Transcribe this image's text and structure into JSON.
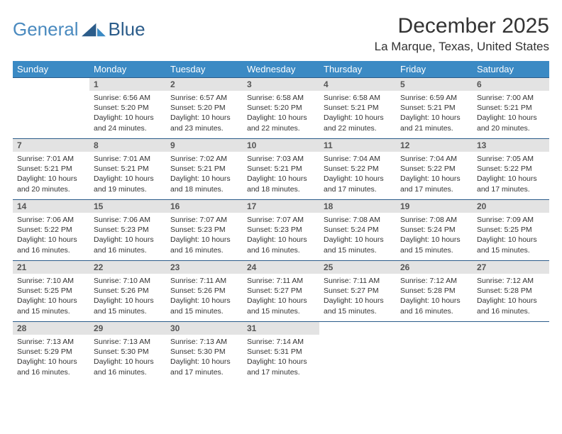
{
  "brand": {
    "part1": "General",
    "part2": "Blue"
  },
  "title": "December 2025",
  "location": "La Marque, Texas, United States",
  "colors": {
    "header_bg": "#3b8ac4",
    "header_text": "#ffffff",
    "daynum_bg": "#e3e3e3",
    "daynum_text": "#555555",
    "cell_border": "#2b5c8a",
    "body_text": "#333333",
    "logo_light": "#4a8abf",
    "logo_dark": "#2b5c8a"
  },
  "weekdays": [
    "Sunday",
    "Monday",
    "Tuesday",
    "Wednesday",
    "Thursday",
    "Friday",
    "Saturday"
  ],
  "weeks": [
    [
      {
        "n": "",
        "lines": []
      },
      {
        "n": "1",
        "lines": [
          "Sunrise: 6:56 AM",
          "Sunset: 5:20 PM",
          "Daylight: 10 hours and 24 minutes."
        ]
      },
      {
        "n": "2",
        "lines": [
          "Sunrise: 6:57 AM",
          "Sunset: 5:20 PM",
          "Daylight: 10 hours and 23 minutes."
        ]
      },
      {
        "n": "3",
        "lines": [
          "Sunrise: 6:58 AM",
          "Sunset: 5:20 PM",
          "Daylight: 10 hours and 22 minutes."
        ]
      },
      {
        "n": "4",
        "lines": [
          "Sunrise: 6:58 AM",
          "Sunset: 5:21 PM",
          "Daylight: 10 hours and 22 minutes."
        ]
      },
      {
        "n": "5",
        "lines": [
          "Sunrise: 6:59 AM",
          "Sunset: 5:21 PM",
          "Daylight: 10 hours and 21 minutes."
        ]
      },
      {
        "n": "6",
        "lines": [
          "Sunrise: 7:00 AM",
          "Sunset: 5:21 PM",
          "Daylight: 10 hours and 20 minutes."
        ]
      }
    ],
    [
      {
        "n": "7",
        "lines": [
          "Sunrise: 7:01 AM",
          "Sunset: 5:21 PM",
          "Daylight: 10 hours and 20 minutes."
        ]
      },
      {
        "n": "8",
        "lines": [
          "Sunrise: 7:01 AM",
          "Sunset: 5:21 PM",
          "Daylight: 10 hours and 19 minutes."
        ]
      },
      {
        "n": "9",
        "lines": [
          "Sunrise: 7:02 AM",
          "Sunset: 5:21 PM",
          "Daylight: 10 hours and 18 minutes."
        ]
      },
      {
        "n": "10",
        "lines": [
          "Sunrise: 7:03 AM",
          "Sunset: 5:21 PM",
          "Daylight: 10 hours and 18 minutes."
        ]
      },
      {
        "n": "11",
        "lines": [
          "Sunrise: 7:04 AM",
          "Sunset: 5:22 PM",
          "Daylight: 10 hours and 17 minutes."
        ]
      },
      {
        "n": "12",
        "lines": [
          "Sunrise: 7:04 AM",
          "Sunset: 5:22 PM",
          "Daylight: 10 hours and 17 minutes."
        ]
      },
      {
        "n": "13",
        "lines": [
          "Sunrise: 7:05 AM",
          "Sunset: 5:22 PM",
          "Daylight: 10 hours and 17 minutes."
        ]
      }
    ],
    [
      {
        "n": "14",
        "lines": [
          "Sunrise: 7:06 AM",
          "Sunset: 5:22 PM",
          "Daylight: 10 hours and 16 minutes."
        ]
      },
      {
        "n": "15",
        "lines": [
          "Sunrise: 7:06 AM",
          "Sunset: 5:23 PM",
          "Daylight: 10 hours and 16 minutes."
        ]
      },
      {
        "n": "16",
        "lines": [
          "Sunrise: 7:07 AM",
          "Sunset: 5:23 PM",
          "Daylight: 10 hours and 16 minutes."
        ]
      },
      {
        "n": "17",
        "lines": [
          "Sunrise: 7:07 AM",
          "Sunset: 5:23 PM",
          "Daylight: 10 hours and 16 minutes."
        ]
      },
      {
        "n": "18",
        "lines": [
          "Sunrise: 7:08 AM",
          "Sunset: 5:24 PM",
          "Daylight: 10 hours and 15 minutes."
        ]
      },
      {
        "n": "19",
        "lines": [
          "Sunrise: 7:08 AM",
          "Sunset: 5:24 PM",
          "Daylight: 10 hours and 15 minutes."
        ]
      },
      {
        "n": "20",
        "lines": [
          "Sunrise: 7:09 AM",
          "Sunset: 5:25 PM",
          "Daylight: 10 hours and 15 minutes."
        ]
      }
    ],
    [
      {
        "n": "21",
        "lines": [
          "Sunrise: 7:10 AM",
          "Sunset: 5:25 PM",
          "Daylight: 10 hours and 15 minutes."
        ]
      },
      {
        "n": "22",
        "lines": [
          "Sunrise: 7:10 AM",
          "Sunset: 5:26 PM",
          "Daylight: 10 hours and 15 minutes."
        ]
      },
      {
        "n": "23",
        "lines": [
          "Sunrise: 7:11 AM",
          "Sunset: 5:26 PM",
          "Daylight: 10 hours and 15 minutes."
        ]
      },
      {
        "n": "24",
        "lines": [
          "Sunrise: 7:11 AM",
          "Sunset: 5:27 PM",
          "Daylight: 10 hours and 15 minutes."
        ]
      },
      {
        "n": "25",
        "lines": [
          "Sunrise: 7:11 AM",
          "Sunset: 5:27 PM",
          "Daylight: 10 hours and 15 minutes."
        ]
      },
      {
        "n": "26",
        "lines": [
          "Sunrise: 7:12 AM",
          "Sunset: 5:28 PM",
          "Daylight: 10 hours and 16 minutes."
        ]
      },
      {
        "n": "27",
        "lines": [
          "Sunrise: 7:12 AM",
          "Sunset: 5:28 PM",
          "Daylight: 10 hours and 16 minutes."
        ]
      }
    ],
    [
      {
        "n": "28",
        "lines": [
          "Sunrise: 7:13 AM",
          "Sunset: 5:29 PM",
          "Daylight: 10 hours and 16 minutes."
        ]
      },
      {
        "n": "29",
        "lines": [
          "Sunrise: 7:13 AM",
          "Sunset: 5:30 PM",
          "Daylight: 10 hours and 16 minutes."
        ]
      },
      {
        "n": "30",
        "lines": [
          "Sunrise: 7:13 AM",
          "Sunset: 5:30 PM",
          "Daylight: 10 hours and 17 minutes."
        ]
      },
      {
        "n": "31",
        "lines": [
          "Sunrise: 7:14 AM",
          "Sunset: 5:31 PM",
          "Daylight: 10 hours and 17 minutes."
        ]
      },
      {
        "n": "",
        "lines": []
      },
      {
        "n": "",
        "lines": []
      },
      {
        "n": "",
        "lines": []
      }
    ]
  ]
}
